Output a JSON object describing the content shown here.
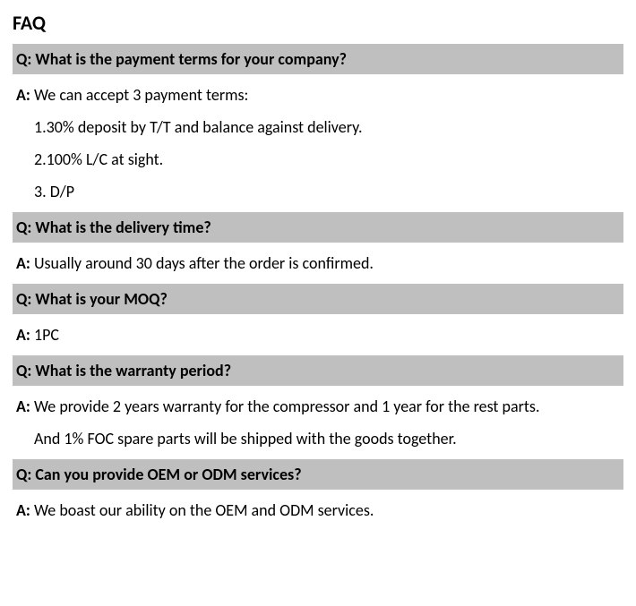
{
  "title": "FAQ",
  "labels": {
    "q_prefix": "Q:",
    "a_prefix": "A:"
  },
  "items": [
    {
      "question": "What is the payment terms for your company?",
      "answer_lines": [
        {
          "text": "We can accept 3 payment terms:",
          "indent": false,
          "lead": true
        },
        {
          "text": "1.30% deposit by T/T and balance against delivery.",
          "indent": true,
          "lead": false
        },
        {
          "text": "2.100% L/C at sight.",
          "indent": true,
          "lead": false
        },
        {
          "text": "3. D/P",
          "indent": true,
          "lead": false
        }
      ]
    },
    {
      "question": "What is the delivery time?",
      "answer_lines": [
        {
          "text": "Usually around 30 days after the order is confirmed.",
          "indent": false,
          "lead": true
        }
      ]
    },
    {
      "question": "What is your MOQ?",
      "answer_lines": [
        {
          "text": "1PC",
          "indent": false,
          "lead": true
        }
      ]
    },
    {
      "question": "What is the warranty period?",
      "answer_lines": [
        {
          "text": "We provide 2 years warranty for the compressor and 1 year for the rest parts.",
          "indent": false,
          "lead": true
        },
        {
          "text": "And 1% FOC spare parts will be shipped with the goods together.",
          "indent": true,
          "lead": false
        }
      ]
    },
    {
      "question": "Can you provide OEM or ODM services?",
      "answer_lines": [
        {
          "text": "We boast our ability on the OEM and ODM services.",
          "indent": false,
          "lead": true
        }
      ]
    }
  ],
  "colors": {
    "question_bg": "#bfbfbf",
    "page_bg": "#ffffff",
    "text": "#000000"
  },
  "typography": {
    "title_fontsize": 22,
    "body_fontsize": 18,
    "font_family": "Calibri"
  }
}
